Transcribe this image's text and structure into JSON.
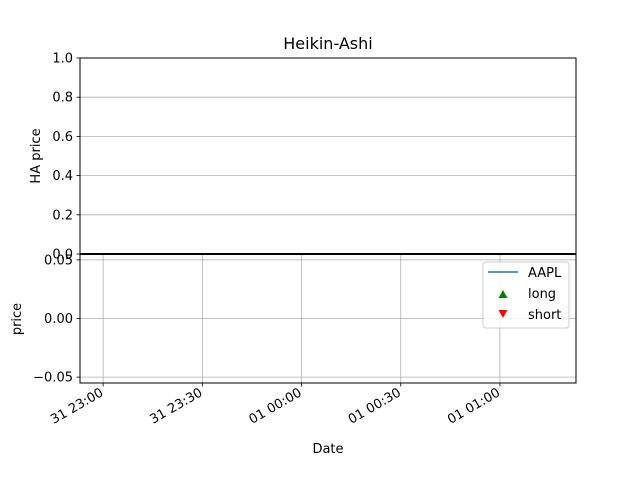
{
  "chart_data": [
    {
      "type": "line",
      "title": "Heikin-Ashi",
      "ylabel": "HA price",
      "xlabel": "",
      "ylim": [
        0.0,
        1.0
      ],
      "yticks": [
        0.0,
        0.2,
        0.4,
        0.6,
        0.8,
        1.0
      ],
      "ytick_labels": [
        "0.0",
        "0.2",
        "0.4",
        "0.6",
        "0.8",
        "1.0"
      ],
      "grid": "y",
      "series": []
    },
    {
      "type": "line",
      "title": "",
      "ylabel": "price",
      "xlabel": "Date",
      "ylim": [
        -0.055,
        0.055
      ],
      "yticks": [
        -0.05,
        0.0,
        0.05
      ],
      "ytick_labels": [
        "−0.05",
        "0.00",
        "0.05"
      ],
      "x_range": [
        "31 22:53",
        "01 01:23"
      ],
      "xticks": [
        "31 23:00",
        "31 23:30",
        "01 00:00",
        "01 00:30",
        "01 01:00"
      ],
      "grid": "both",
      "legend_position": "upper-right",
      "series": [
        {
          "name": "AAPL",
          "marker": "line",
          "color": "#1f77b4",
          "values": []
        },
        {
          "name": "long",
          "marker": "triangle-up",
          "color": "#008000",
          "values": []
        },
        {
          "name": "short",
          "marker": "triangle-down",
          "color": "#ff0000",
          "values": []
        }
      ]
    }
  ]
}
